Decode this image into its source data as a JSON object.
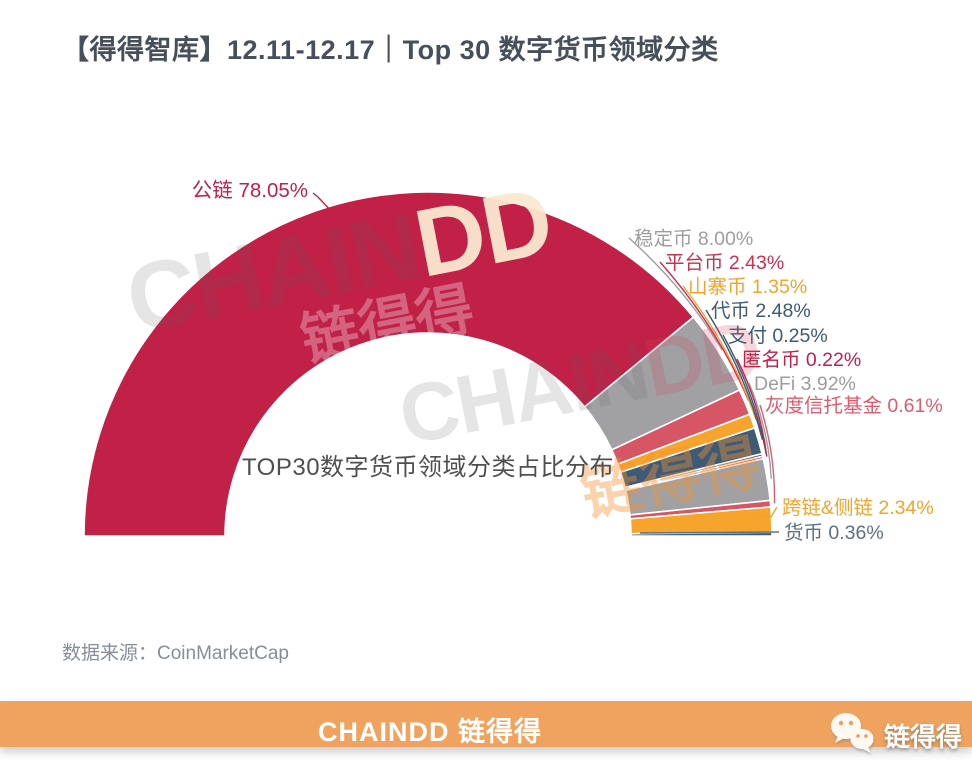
{
  "header": {
    "title": "【得得智库】12.11-12.17｜Top 30 数字货币领域分类"
  },
  "chart_data": {
    "type": "pie",
    "shape": "half-donut",
    "unit": "%",
    "total": 100,
    "center_caption": "TOP30数字货币领域分类占比分布",
    "legend_position": "callout-labels",
    "segments": [
      {
        "name": "公链",
        "value": 78.05,
        "color": "#c12047",
        "label_color": "#c12047"
      },
      {
        "name": "稳定币",
        "value": 8.0,
        "color": "#a1a1a3",
        "label_color": "#9c9da0"
      },
      {
        "name": "平台币",
        "value": 2.43,
        "color": "#d65666",
        "label_color": "#ce2f4e"
      },
      {
        "name": "山寨币",
        "value": 1.35,
        "color": "#f6a42c",
        "label_color": "#f3a32a"
      },
      {
        "name": "代币",
        "value": 2.48,
        "color": "#3e5a75",
        "label_color": "#3e5a75"
      },
      {
        "name": "支付",
        "value": 0.25,
        "color": "#3e5a75",
        "label_color": "#3e5a75"
      },
      {
        "name": "匿名币",
        "value": 0.22,
        "color": "#c12047",
        "label_color": "#c12047"
      },
      {
        "name": "DeFi",
        "value": 3.92,
        "color": "#a1a1a3",
        "label_color": "#9c9da0"
      },
      {
        "name": "灰度信托基金",
        "value": 0.61,
        "color": "#d65666",
        "label_color": "#e05a6e"
      },
      {
        "name": "跨链&侧链",
        "value": 2.34,
        "color": "#f6a42c",
        "label_color": "#f3a32a"
      },
      {
        "name": "货币",
        "value": 0.36,
        "color": "#3e5a75",
        "label_color": "#5b7186"
      }
    ]
  },
  "source": {
    "label": "数据来源：CoinMarketCap"
  },
  "footer": {
    "logo_text": "CHAINDD 链得得",
    "wechat_label": "链得得"
  },
  "watermarks": {
    "brand_en_part1": "CHAIN",
    "brand_en_part2": "DD",
    "brand_cn": "链得得"
  }
}
